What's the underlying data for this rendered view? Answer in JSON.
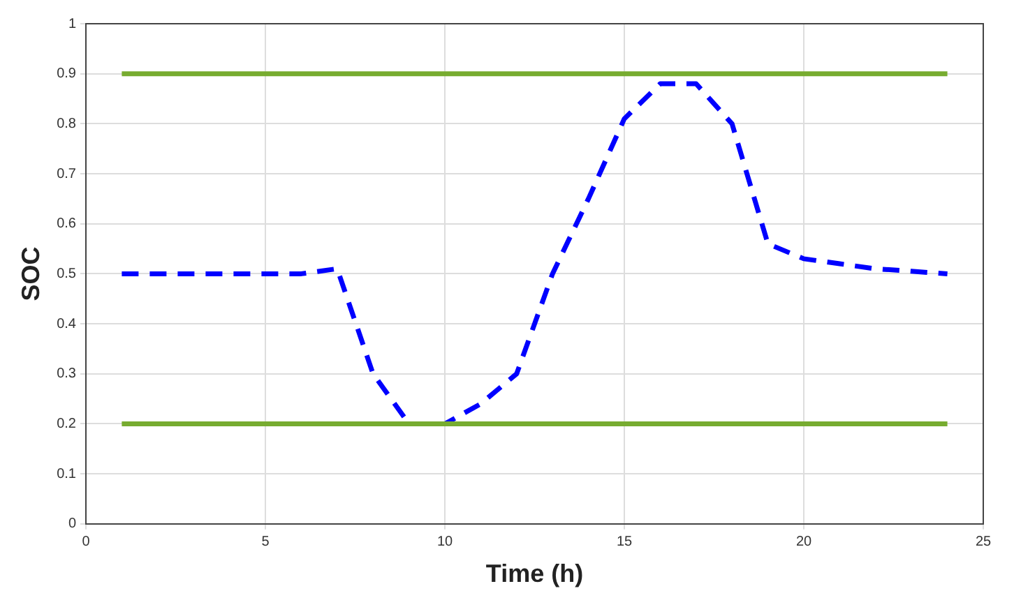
{
  "chart_data": {
    "type": "line",
    "xlabel": "Time (h)",
    "ylabel": "SOC",
    "xlim": [
      0,
      25
    ],
    "xticks": [
      0,
      5,
      10,
      15,
      20,
      25
    ],
    "ylim": [
      0,
      1
    ],
    "yticks": [
      0,
      0.1,
      0.2,
      0.3,
      0.4,
      0.5,
      0.6,
      0.7,
      0.8,
      0.9,
      1
    ],
    "grid": true,
    "legend": false,
    "series": [
      {
        "color": "#77ac30",
        "x": [
          1,
          24
        ],
        "values": [
          0.9,
          0.9
        ],
        "line_style": "solid"
      },
      {
        "color": "#77ac30",
        "x": [
          1,
          24
        ],
        "values": [
          0.2,
          0.2
        ],
        "line_style": "solid"
      },
      {
        "color": "#0000ff",
        "x": [
          1,
          2,
          3,
          4,
          5,
          6,
          7,
          8,
          9,
          10,
          11,
          12,
          13,
          14,
          15,
          16,
          17,
          18,
          19,
          20,
          21,
          22,
          23,
          24
        ],
        "values": [
          0.5,
          0.5,
          0.5,
          0.5,
          0.5,
          0.5,
          0.51,
          0.3,
          0.2,
          0.2,
          0.24,
          0.3,
          0.5,
          0.65,
          0.81,
          0.88,
          0.88,
          0.8,
          0.56,
          0.53,
          0.52,
          0.51,
          0.505,
          0.5
        ],
        "line_style": "dashed"
      }
    ]
  }
}
